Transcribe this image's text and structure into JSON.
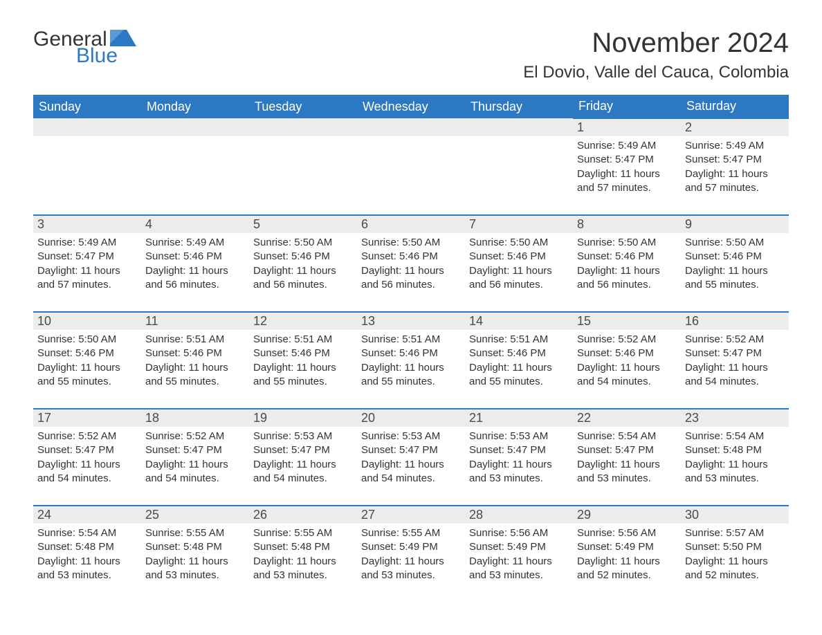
{
  "logo": {
    "text1": "General",
    "text2": "Blue",
    "accent_color": "#2d78c2"
  },
  "title": "November 2024",
  "location": "El Dovio, Valle del Cauca, Colombia",
  "colors": {
    "header_bg": "#2d78c2",
    "header_text": "#ffffff",
    "daynum_bg": "#ececec",
    "divider": "#2d78c2",
    "text": "#333333",
    "background": "#ffffff"
  },
  "typography": {
    "title_fontsize": 40,
    "location_fontsize": 24,
    "weekday_fontsize": 18,
    "daynum_fontsize": 18,
    "body_fontsize": 15
  },
  "weekdays": [
    "Sunday",
    "Monday",
    "Tuesday",
    "Wednesday",
    "Thursday",
    "Friday",
    "Saturday"
  ],
  "weeks": [
    [
      null,
      null,
      null,
      null,
      null,
      {
        "day": "1",
        "sunrise": "Sunrise: 5:49 AM",
        "sunset": "Sunset: 5:47 PM",
        "daylight": "Daylight: 11 hours and 57 minutes."
      },
      {
        "day": "2",
        "sunrise": "Sunrise: 5:49 AM",
        "sunset": "Sunset: 5:47 PM",
        "daylight": "Daylight: 11 hours and 57 minutes."
      }
    ],
    [
      {
        "day": "3",
        "sunrise": "Sunrise: 5:49 AM",
        "sunset": "Sunset: 5:47 PM",
        "daylight": "Daylight: 11 hours and 57 minutes."
      },
      {
        "day": "4",
        "sunrise": "Sunrise: 5:49 AM",
        "sunset": "Sunset: 5:46 PM",
        "daylight": "Daylight: 11 hours and 56 minutes."
      },
      {
        "day": "5",
        "sunrise": "Sunrise: 5:50 AM",
        "sunset": "Sunset: 5:46 PM",
        "daylight": "Daylight: 11 hours and 56 minutes."
      },
      {
        "day": "6",
        "sunrise": "Sunrise: 5:50 AM",
        "sunset": "Sunset: 5:46 PM",
        "daylight": "Daylight: 11 hours and 56 minutes."
      },
      {
        "day": "7",
        "sunrise": "Sunrise: 5:50 AM",
        "sunset": "Sunset: 5:46 PM",
        "daylight": "Daylight: 11 hours and 56 minutes."
      },
      {
        "day": "8",
        "sunrise": "Sunrise: 5:50 AM",
        "sunset": "Sunset: 5:46 PM",
        "daylight": "Daylight: 11 hours and 56 minutes."
      },
      {
        "day": "9",
        "sunrise": "Sunrise: 5:50 AM",
        "sunset": "Sunset: 5:46 PM",
        "daylight": "Daylight: 11 hours and 55 minutes."
      }
    ],
    [
      {
        "day": "10",
        "sunrise": "Sunrise: 5:50 AM",
        "sunset": "Sunset: 5:46 PM",
        "daylight": "Daylight: 11 hours and 55 minutes."
      },
      {
        "day": "11",
        "sunrise": "Sunrise: 5:51 AM",
        "sunset": "Sunset: 5:46 PM",
        "daylight": "Daylight: 11 hours and 55 minutes."
      },
      {
        "day": "12",
        "sunrise": "Sunrise: 5:51 AM",
        "sunset": "Sunset: 5:46 PM",
        "daylight": "Daylight: 11 hours and 55 minutes."
      },
      {
        "day": "13",
        "sunrise": "Sunrise: 5:51 AM",
        "sunset": "Sunset: 5:46 PM",
        "daylight": "Daylight: 11 hours and 55 minutes."
      },
      {
        "day": "14",
        "sunrise": "Sunrise: 5:51 AM",
        "sunset": "Sunset: 5:46 PM",
        "daylight": "Daylight: 11 hours and 55 minutes."
      },
      {
        "day": "15",
        "sunrise": "Sunrise: 5:52 AM",
        "sunset": "Sunset: 5:46 PM",
        "daylight": "Daylight: 11 hours and 54 minutes."
      },
      {
        "day": "16",
        "sunrise": "Sunrise: 5:52 AM",
        "sunset": "Sunset: 5:47 PM",
        "daylight": "Daylight: 11 hours and 54 minutes."
      }
    ],
    [
      {
        "day": "17",
        "sunrise": "Sunrise: 5:52 AM",
        "sunset": "Sunset: 5:47 PM",
        "daylight": "Daylight: 11 hours and 54 minutes."
      },
      {
        "day": "18",
        "sunrise": "Sunrise: 5:52 AM",
        "sunset": "Sunset: 5:47 PM",
        "daylight": "Daylight: 11 hours and 54 minutes."
      },
      {
        "day": "19",
        "sunrise": "Sunrise: 5:53 AM",
        "sunset": "Sunset: 5:47 PM",
        "daylight": "Daylight: 11 hours and 54 minutes."
      },
      {
        "day": "20",
        "sunrise": "Sunrise: 5:53 AM",
        "sunset": "Sunset: 5:47 PM",
        "daylight": "Daylight: 11 hours and 54 minutes."
      },
      {
        "day": "21",
        "sunrise": "Sunrise: 5:53 AM",
        "sunset": "Sunset: 5:47 PM",
        "daylight": "Daylight: 11 hours and 53 minutes."
      },
      {
        "day": "22",
        "sunrise": "Sunrise: 5:54 AM",
        "sunset": "Sunset: 5:47 PM",
        "daylight": "Daylight: 11 hours and 53 minutes."
      },
      {
        "day": "23",
        "sunrise": "Sunrise: 5:54 AM",
        "sunset": "Sunset: 5:48 PM",
        "daylight": "Daylight: 11 hours and 53 minutes."
      }
    ],
    [
      {
        "day": "24",
        "sunrise": "Sunrise: 5:54 AM",
        "sunset": "Sunset: 5:48 PM",
        "daylight": "Daylight: 11 hours and 53 minutes."
      },
      {
        "day": "25",
        "sunrise": "Sunrise: 5:55 AM",
        "sunset": "Sunset: 5:48 PM",
        "daylight": "Daylight: 11 hours and 53 minutes."
      },
      {
        "day": "26",
        "sunrise": "Sunrise: 5:55 AM",
        "sunset": "Sunset: 5:48 PM",
        "daylight": "Daylight: 11 hours and 53 minutes."
      },
      {
        "day": "27",
        "sunrise": "Sunrise: 5:55 AM",
        "sunset": "Sunset: 5:49 PM",
        "daylight": "Daylight: 11 hours and 53 minutes."
      },
      {
        "day": "28",
        "sunrise": "Sunrise: 5:56 AM",
        "sunset": "Sunset: 5:49 PM",
        "daylight": "Daylight: 11 hours and 53 minutes."
      },
      {
        "day": "29",
        "sunrise": "Sunrise: 5:56 AM",
        "sunset": "Sunset: 5:49 PM",
        "daylight": "Daylight: 11 hours and 52 minutes."
      },
      {
        "day": "30",
        "sunrise": "Sunrise: 5:57 AM",
        "sunset": "Sunset: 5:50 PM",
        "daylight": "Daylight: 11 hours and 52 minutes."
      }
    ]
  ]
}
